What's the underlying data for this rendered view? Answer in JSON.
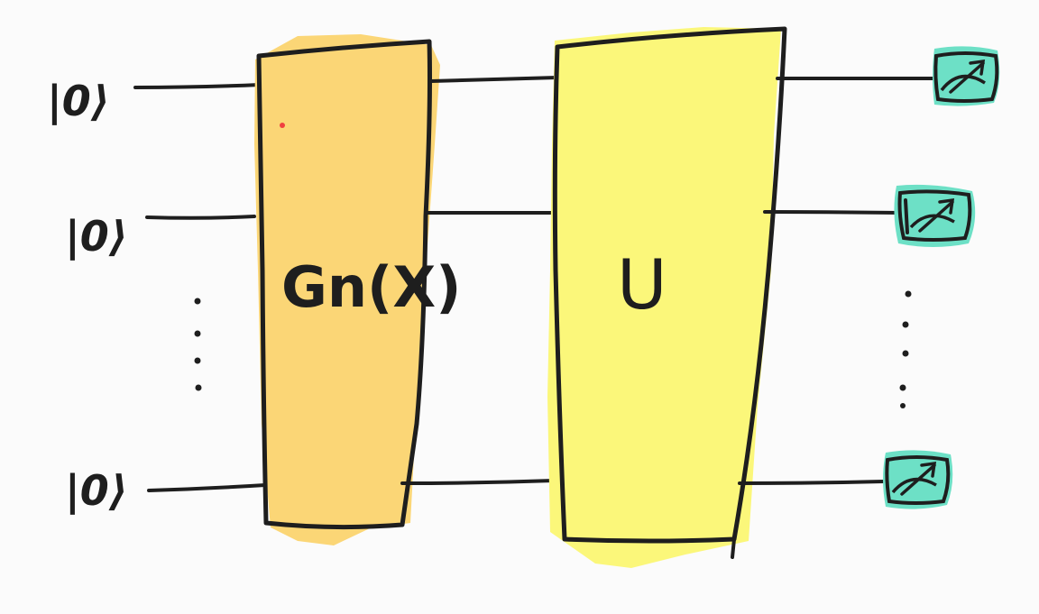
{
  "diagram": {
    "inputs": [
      {
        "label": "|0⟩"
      },
      {
        "label": "|0⟩"
      },
      {
        "label": "|0⟩"
      }
    ],
    "gates": [
      {
        "label": "Gn(X)",
        "fill": "#fbd676"
      },
      {
        "label": "U",
        "fill": "#fbf77a"
      }
    ],
    "measurement": {
      "icon": "measurement-meter-icon",
      "fill": "#6de0c6",
      "count": 3
    },
    "ink_color": "#1e1e1e",
    "ellipsis": "⋮"
  }
}
